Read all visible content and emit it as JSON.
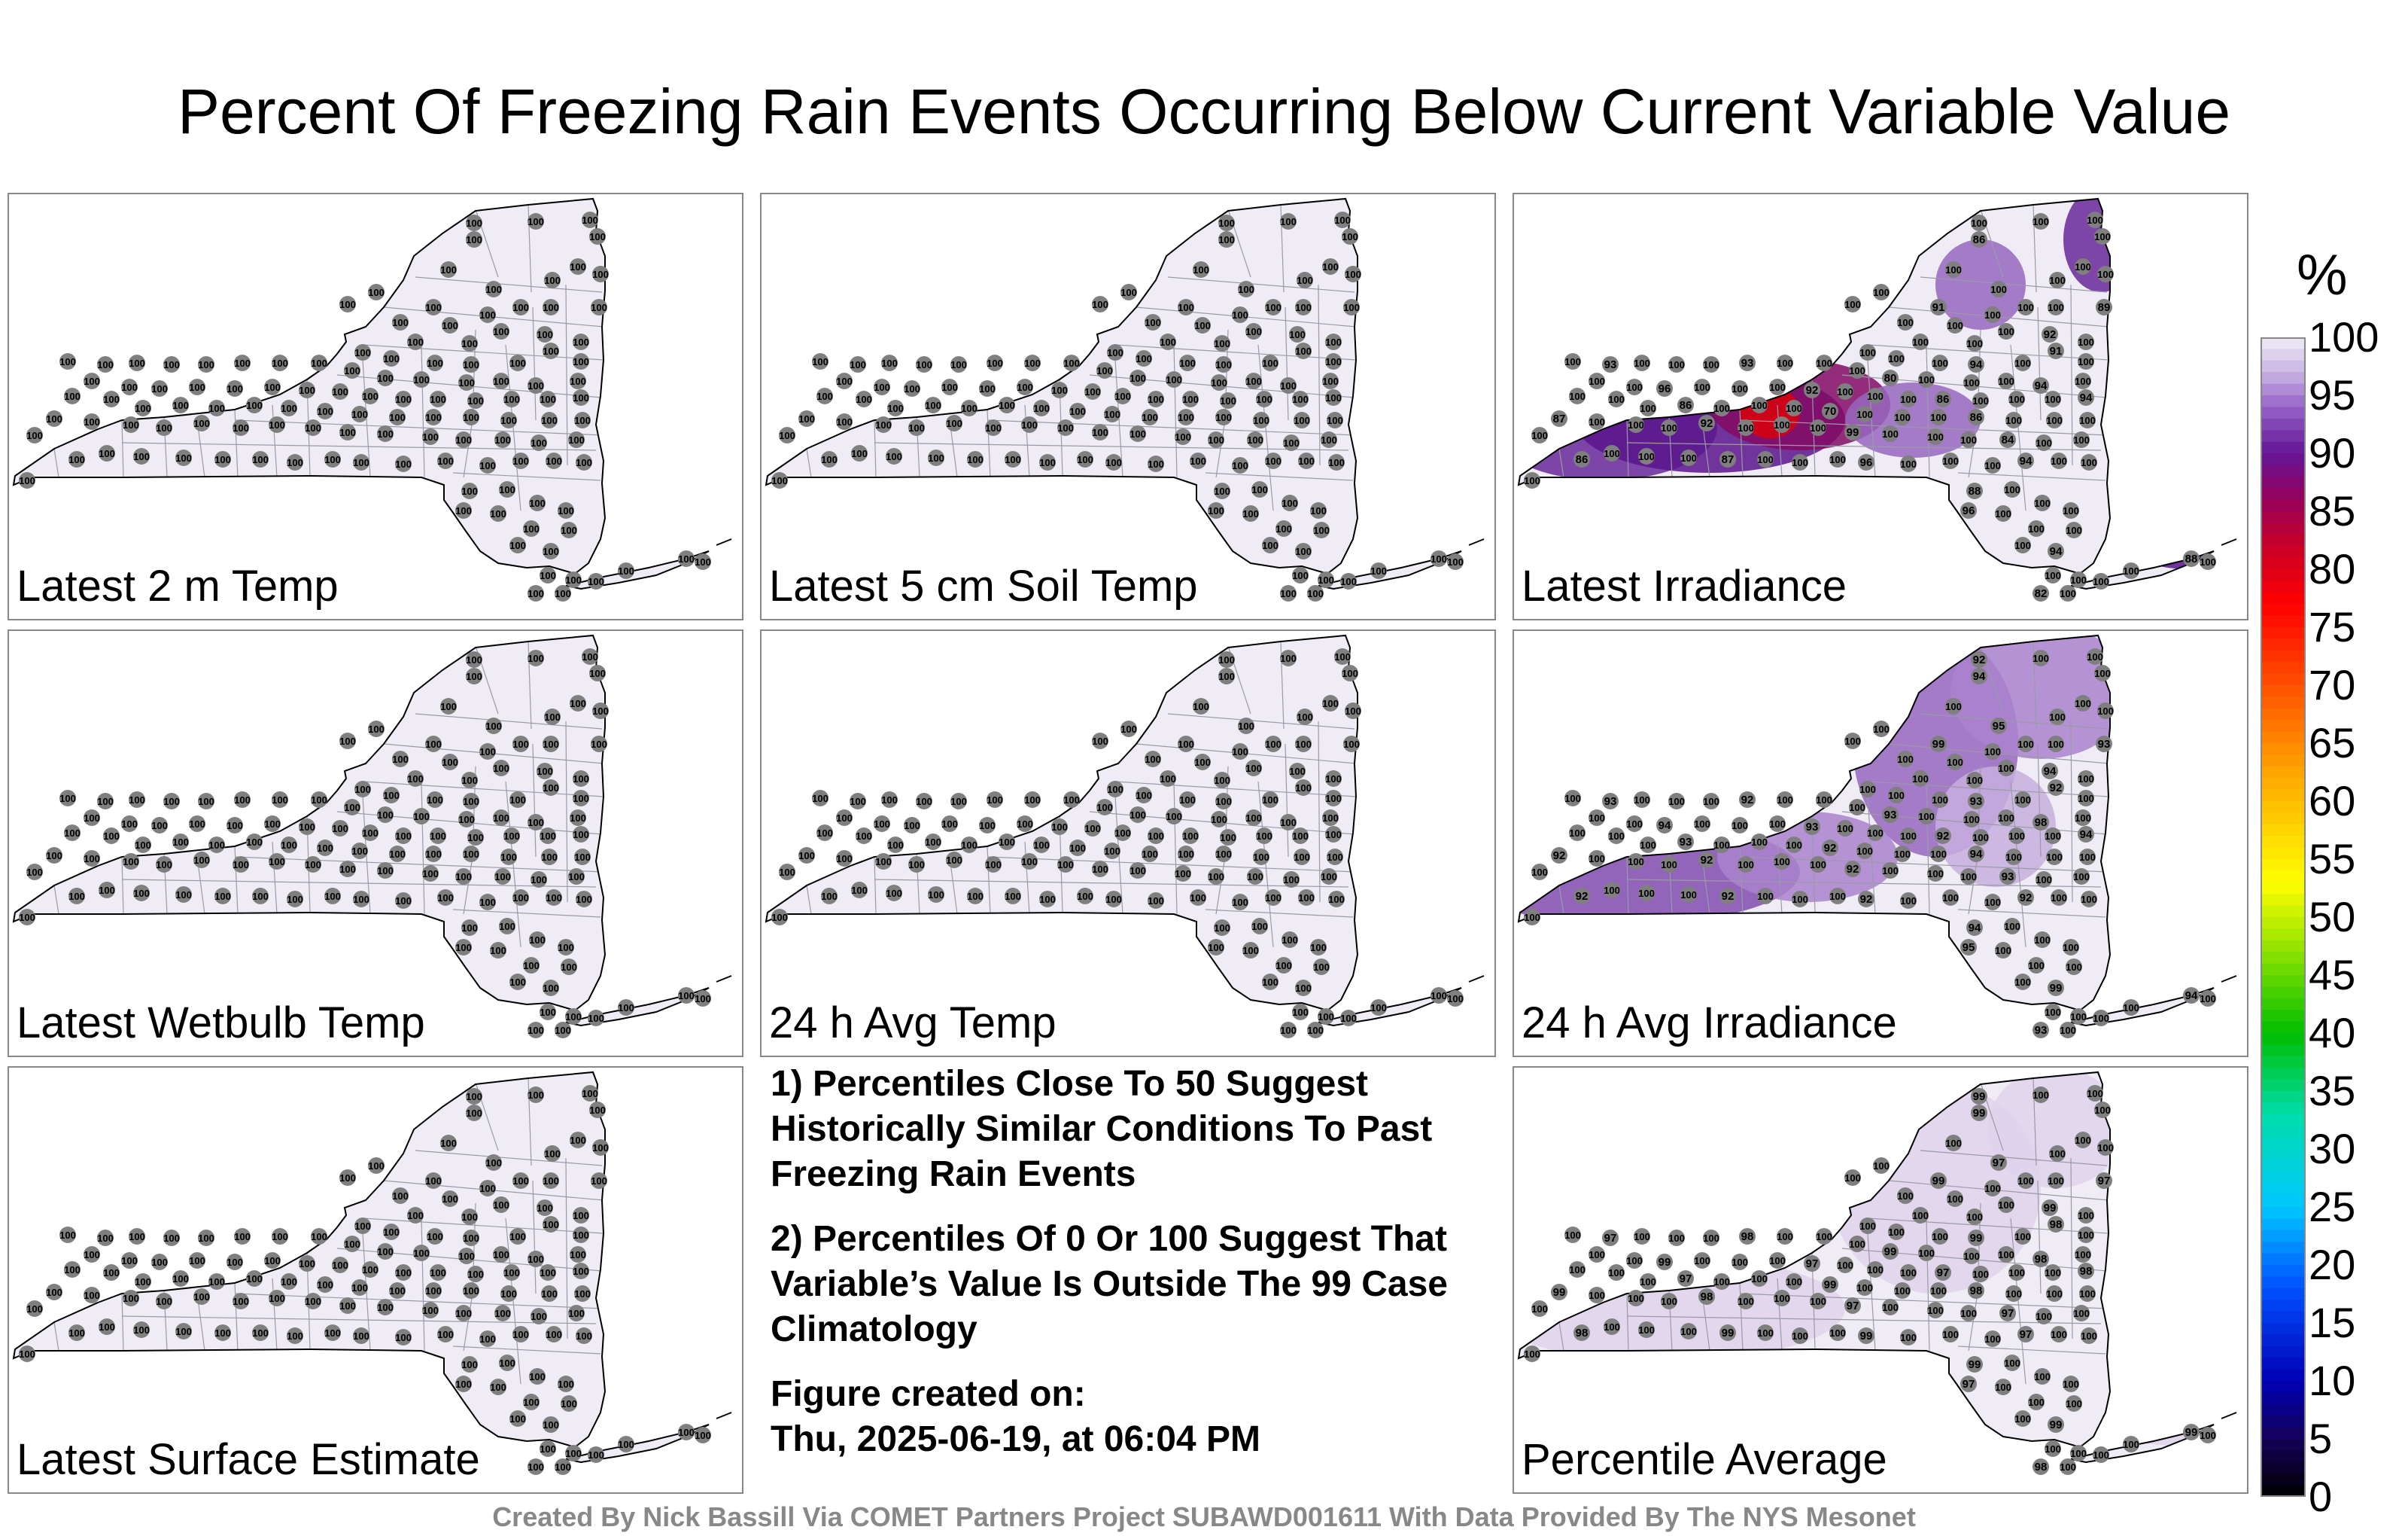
{
  "title": "Percent Of Freezing Rain Events Occurring Below Current Variable Value",
  "panels": [
    {
      "label": "Latest 2 m Temp",
      "mode": "uniform"
    },
    {
      "label": "Latest 5 cm Soil Temp",
      "mode": "uniform"
    },
    {
      "label": "Latest Irradiance",
      "mode": "irradiance",
      "visible_values": [
        100,
        86,
        100,
        91,
        89,
        92,
        91,
        94,
        93,
        93,
        80,
        94,
        96,
        92,
        86,
        94,
        86,
        70,
        86,
        87,
        92,
        99,
        84,
        86,
        87,
        96,
        94,
        88,
        96,
        94,
        82,
        88
      ]
    },
    {
      "label": "Latest Wetbulb Temp",
      "mode": "uniform"
    },
    {
      "label": "24 h Avg Temp",
      "mode": "uniform"
    },
    {
      "label": "24 h Avg Irradiance",
      "mode": "avg_irradiance",
      "visible_values": [
        92,
        94,
        95,
        99,
        93,
        94,
        92,
        93,
        93,
        92,
        93,
        98,
        94,
        93,
        92,
        94,
        93,
        92,
        94,
        92,
        92,
        92,
        93,
        92,
        92,
        92
      ]
    },
    {
      "label": "Latest Surface Estimate",
      "mode": "uniform"
    },
    {
      "label": "Percentile Average",
      "mode": "average",
      "visible_values": [
        99,
        99,
        97,
        99,
        97,
        99,
        98,
        99,
        97,
        98,
        99,
        98,
        99,
        97,
        97,
        98,
        97,
        99,
        98,
        99,
        98,
        97,
        97,
        98
      ]
    }
  ],
  "notes": {
    "note1": "1) Percentiles Close To 50 Suggest Historically Similar Conditions To Past Freezing Rain Events",
    "note2": "2) Percentiles Of 0 Or 100 Suggest That Variable’s Value Is Outside The 99 Case Climatology",
    "created_label": "Figure created on:",
    "created_value": "Thu, 2025-06-19, at 06:04 PM"
  },
  "colorbar": {
    "unit": "%",
    "ticks": [
      "100",
      "95",
      "90",
      "85",
      "80",
      "75",
      "70",
      "65",
      "60",
      "55",
      "50",
      "45",
      "40",
      "35",
      "30",
      "25",
      "20",
      "15",
      "10",
      "5",
      "0"
    ]
  },
  "colors": {
    "background_light": "#f0ecf6",
    "station_marker": "#7f7f7f",
    "county_lines": "#9a9aa6",
    "outline": "#000000"
  },
  "footer": "Created By Nick Bassill Via COMET Partners Project SUBAWD001611 With Data Provided By The NYS Mesonet"
}
